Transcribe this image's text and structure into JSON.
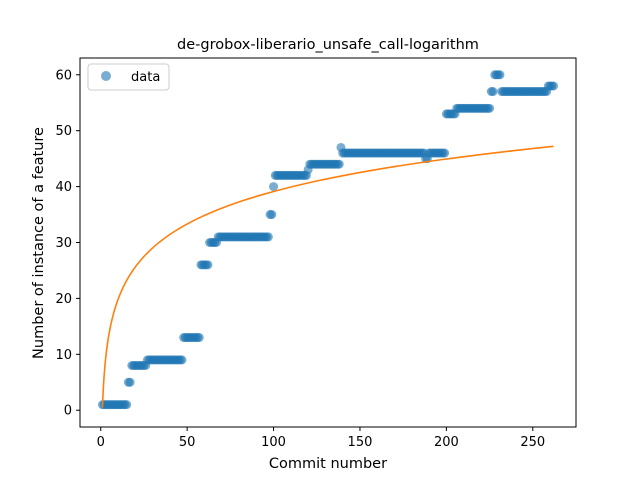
{
  "colors": {
    "data_point": "#1f77b4",
    "fit_line": "#ff7f0e"
  },
  "chart_data": {
    "type": "scatter",
    "title": "de-grobox-liberario_unsafe_call-logarithm",
    "xlabel": "Commit number",
    "ylabel": "Number of instance of a feature",
    "xlim": [
      -12,
      275
    ],
    "ylim": [
      -3,
      63
    ],
    "xticks": [
      0,
      50,
      100,
      150,
      200,
      250
    ],
    "yticks": [
      0,
      10,
      20,
      30,
      40,
      50,
      60
    ],
    "grid": false,
    "legend_position": "upper-left",
    "legend": [
      "data"
    ],
    "series": [
      {
        "name": "data",
        "kind": "scatter",
        "runs": [
          {
            "x_from": 1,
            "x_to": 15,
            "y": 1
          },
          {
            "x_from": 16,
            "x_to": 17,
            "y": 5
          },
          {
            "x_from": 18,
            "x_to": 26,
            "y": 8
          },
          {
            "x_from": 27,
            "x_to": 47,
            "y": 9
          },
          {
            "x_from": 48,
            "x_to": 57,
            "y": 13
          },
          {
            "x_from": 58,
            "x_to": 62,
            "y": 26
          },
          {
            "x_from": 63,
            "x_to": 67,
            "y": 30
          },
          {
            "x_from": 68,
            "x_to": 97,
            "y": 31
          },
          {
            "x_from": 98,
            "x_to": 99,
            "y": 35
          },
          {
            "x_from": 100,
            "x_to": 100,
            "y": 40
          },
          {
            "x_from": 101,
            "x_to": 119,
            "y": 42
          },
          {
            "x_from": 120,
            "x_to": 120,
            "y": 43
          },
          {
            "x_from": 121,
            "x_to": 138,
            "y": 44
          },
          {
            "x_from": 139,
            "x_to": 139,
            "y": 47
          },
          {
            "x_from": 140,
            "x_to": 187,
            "y": 46
          },
          {
            "x_from": 188,
            "x_to": 189,
            "y": 45
          },
          {
            "x_from": 190,
            "x_to": 199,
            "y": 46
          },
          {
            "x_from": 200,
            "x_to": 205,
            "y": 53
          },
          {
            "x_from": 206,
            "x_to": 225,
            "y": 54
          },
          {
            "x_from": 226,
            "x_to": 227,
            "y": 57
          },
          {
            "x_from": 228,
            "x_to": 231,
            "y": 60
          },
          {
            "x_from": 232,
            "x_to": 258,
            "y": 57
          },
          {
            "x_from": 259,
            "x_to": 262,
            "y": 58
          }
        ]
      },
      {
        "kind": "line",
        "model": "logarithmic",
        "x_range": [
          1,
          262
        ],
        "y_at_x_start": 0.5,
        "y_at_x_end": 47.2
      }
    ]
  }
}
